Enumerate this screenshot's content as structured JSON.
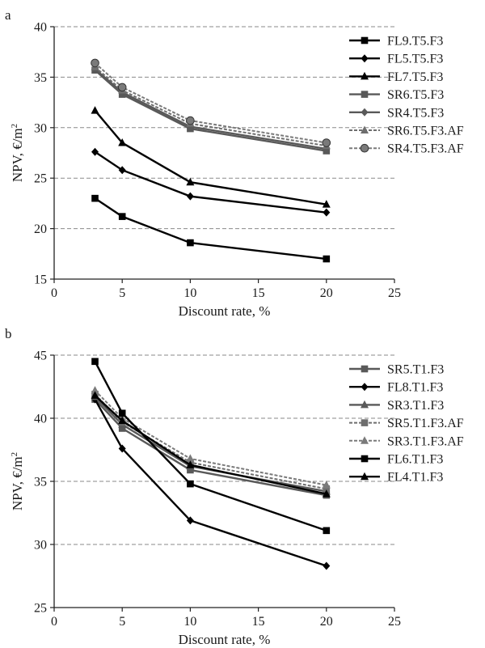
{
  "chart_data": [
    {
      "panel_label": "a",
      "type": "line",
      "xlabel": "Discount rate, %",
      "ylabel": "NPV, €/m²",
      "xlim": [
        0,
        25
      ],
      "ylim": [
        15,
        40
      ],
      "xticks": [
        "0",
        "5",
        "10",
        "15",
        "20",
        "25"
      ],
      "yticks": [
        "15",
        "20",
        "25",
        "30",
        "35",
        "40"
      ],
      "grid": "horizontal dashed",
      "legend_position": "right",
      "x": [
        3,
        5,
        10,
        20
      ],
      "series": [
        {
          "name": "FL9.T5.F3",
          "values": [
            23.0,
            21.2,
            18.6,
            17.0
          ],
          "marker": "square",
          "dashed": false,
          "color": "#000000"
        },
        {
          "name": "FL5.T5.F3",
          "values": [
            27.6,
            25.8,
            23.2,
            21.6
          ],
          "marker": "diamond",
          "dashed": false,
          "color": "#000000"
        },
        {
          "name": "FL7.T5.F3",
          "values": [
            31.7,
            28.5,
            24.6,
            22.4
          ],
          "marker": "triangle",
          "dashed": false,
          "color": "#000000"
        },
        {
          "name": "SR6.T5.F3",
          "values": [
            35.7,
            33.3,
            29.9,
            27.7
          ],
          "marker": "square",
          "dashed": false,
          "color": "#595959"
        },
        {
          "name": "SR4.T5.F3",
          "values": [
            35.8,
            33.5,
            30.1,
            27.9
          ],
          "marker": "diamond",
          "dashed": false,
          "color": "#595959"
        },
        {
          "name": "SR6.T5.F3.AF",
          "values": [
            36.0,
            33.7,
            30.4,
            28.2
          ],
          "marker": "triangle",
          "dashed": true,
          "color": "#6e6e6e"
        },
        {
          "name": "SR4.T5.F3.AF",
          "values": [
            36.4,
            34.0,
            30.7,
            28.5
          ],
          "marker": "circle",
          "dashed": true,
          "color": "#7a7a7a"
        }
      ]
    },
    {
      "panel_label": "b",
      "type": "line",
      "xlabel": "Discount rate, %",
      "ylabel": "NPV, €/m²",
      "xlim": [
        0,
        25
      ],
      "ylim": [
        25,
        45
      ],
      "xticks": [
        "0",
        "5",
        "10",
        "15",
        "20",
        "25"
      ],
      "yticks": [
        "25",
        "30",
        "35",
        "40",
        "45"
      ],
      "grid": "horizontal dashed",
      "legend_position": "right",
      "x": [
        3,
        5,
        10,
        20
      ],
      "series": [
        {
          "name": "SR5.T1.F3",
          "values": [
            41.5,
            39.2,
            35.9,
            33.9
          ],
          "marker": "square",
          "dashed": false,
          "color": "#595959"
        },
        {
          "name": "FL8.T1.F3",
          "values": [
            41.5,
            37.6,
            31.9,
            28.3
          ],
          "marker": "diamond",
          "dashed": false,
          "color": "#000000"
        },
        {
          "name": "SR3.T1.F3",
          "values": [
            41.7,
            39.5,
            36.2,
            34.2
          ],
          "marker": "triangle",
          "dashed": false,
          "color": "#595959"
        },
        {
          "name": "SR5.T1.F3.AF",
          "values": [
            41.9,
            39.7,
            36.5,
            34.4
          ],
          "marker": "square",
          "dashed": true,
          "color": "#6e6e6e"
        },
        {
          "name": "SR3.T1.F3.AF",
          "values": [
            42.2,
            40.0,
            36.8,
            34.7
          ],
          "marker": "triangle",
          "dashed": true,
          "color": "#7a7a7a"
        },
        {
          "name": "FL6.T1.F3",
          "values": [
            44.5,
            40.4,
            34.8,
            31.1
          ],
          "marker": "square",
          "dashed": false,
          "color": "#000000"
        },
        {
          "name": "FL4.T1.F3",
          "values": [
            41.8,
            39.8,
            36.3,
            34.0
          ],
          "marker": "triangle",
          "dashed": false,
          "color": "#000000"
        }
      ]
    }
  ]
}
